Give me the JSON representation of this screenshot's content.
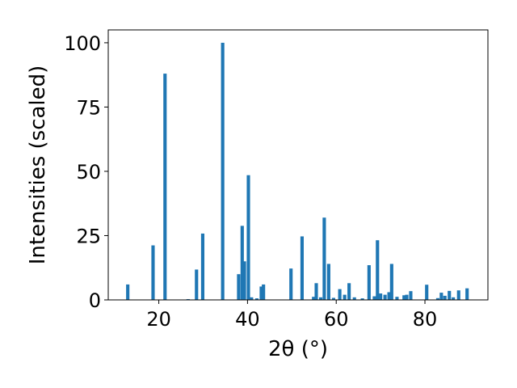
{
  "chart_data": {
    "type": "bar",
    "title": "",
    "xlabel": "2θ (°)",
    "ylabel": "Intensities (scaled)",
    "xlim": [
      8.6,
      94.2
    ],
    "ylim": [
      0,
      105
    ],
    "xticks": [
      20,
      40,
      60,
      80
    ],
    "yticks": [
      0,
      25,
      50,
      75,
      100
    ],
    "bar_width": 0.75,
    "color": "#1f77b4",
    "grid": false,
    "x": [
      13.0,
      18.7,
      21.4,
      26.6,
      28.5,
      29.9,
      34.4,
      38.0,
      38.8,
      39.3,
      40.2,
      40.9,
      42.1,
      43.1,
      43.6,
      49.8,
      52.3,
      54.9,
      55.5,
      56.5,
      57.3,
      58.3,
      59.4,
      60.8,
      61.9,
      62.9,
      64.1,
      65.9,
      67.4,
      68.6,
      69.3,
      70.0,
      71.0,
      71.9,
      72.5,
      73.7,
      75.3,
      75.9,
      76.8,
      80.4,
      82.9,
      83.7,
      84.5,
      85.5,
      86.4,
      87.6,
      89.5
    ],
    "values": [
      6.0,
      21.2,
      88.0,
      0.3,
      11.8,
      25.8,
      100.0,
      10.0,
      28.8,
      15.0,
      48.5,
      1.0,
      0.6,
      5.2,
      6.0,
      12.2,
      24.7,
      1.2,
      6.5,
      1.0,
      32.0,
      14.0,
      0.8,
      4.2,
      2.0,
      6.5,
      1.0,
      0.6,
      13.5,
      1.4,
      23.2,
      2.5,
      2.0,
      3.0,
      14.0,
      1.2,
      1.8,
      2.0,
      3.4,
      5.9,
      0.7,
      2.8,
      1.6,
      3.5,
      1.0,
      3.7,
      4.5
    ]
  }
}
